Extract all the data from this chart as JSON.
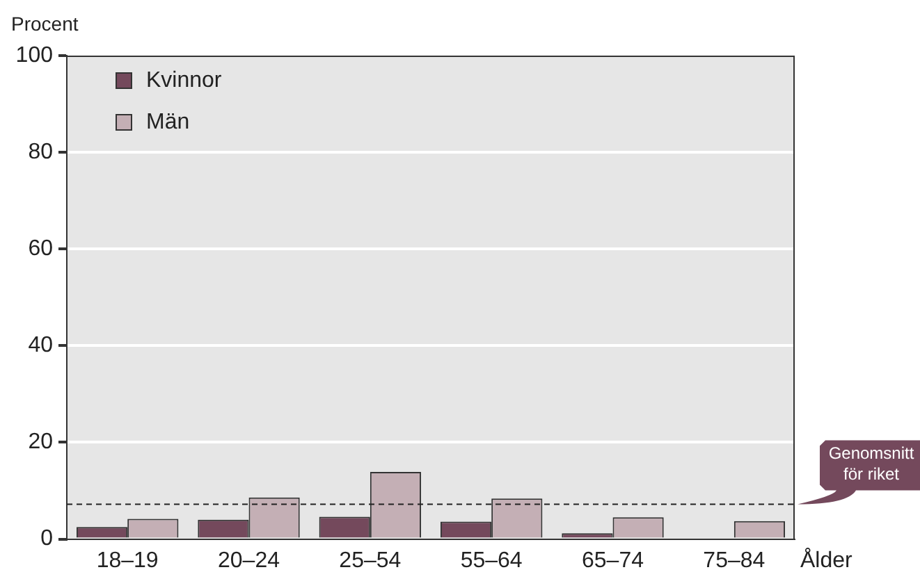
{
  "chart_data": {
    "type": "bar",
    "ylabel": "Procent",
    "xlabel": "Ålder",
    "categories": [
      "18–19",
      "20–24",
      "25–54",
      "55–64",
      "65–74",
      "75–84"
    ],
    "series": [
      {
        "name": "Kvinnor",
        "color": "#74495c",
        "values": [
          2.5,
          4.0,
          4.6,
          3.6,
          1.2,
          0.3
        ]
      },
      {
        "name": "Män",
        "color": "#c4afb5",
        "values": [
          4.2,
          8.6,
          13.9,
          8.4,
          4.5,
          3.7
        ]
      }
    ],
    "ylim": [
      0,
      100
    ],
    "yticks": [
      0,
      20,
      40,
      60,
      80,
      100
    ],
    "grid": "y",
    "legend": "top left",
    "ref_lines": [
      {
        "axis": "y",
        "value": 7.2,
        "label": "Genomsnitt för riket",
        "color": "#222222",
        "line_style": "dashed"
      }
    ]
  }
}
